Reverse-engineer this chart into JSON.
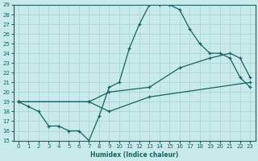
{
  "xlabel": "Humidex (Indice chaleur)",
  "bg_color": "#c8eaea",
  "line_color": "#1a6060",
  "grid_color": "#a8d0d0",
  "xlim": [
    -0.5,
    23.5
  ],
  "ylim": [
    15,
    29
  ],
  "xticks": [
    0,
    1,
    2,
    3,
    4,
    5,
    6,
    7,
    8,
    9,
    10,
    11,
    12,
    13,
    14,
    15,
    16,
    17,
    18,
    19,
    20,
    21,
    22,
    23
  ],
  "yticks": [
    15,
    16,
    17,
    18,
    19,
    20,
    21,
    22,
    23,
    24,
    25,
    26,
    27,
    28,
    29
  ],
  "line1_x": [
    0,
    1,
    2,
    3,
    4,
    5,
    6,
    7,
    8,
    9,
    10,
    11,
    12,
    13,
    14,
    15,
    16,
    17,
    18,
    19,
    20,
    21,
    22,
    23
  ],
  "line1_y": [
    19,
    18.5,
    18,
    16.5,
    16.5,
    16,
    16,
    15,
    17.5,
    20.5,
    21,
    24.5,
    27,
    29,
    29,
    29,
    28.5,
    26.5,
    25,
    24,
    24,
    23.5,
    21.5,
    20.5
  ],
  "line2_x": [
    0,
    7,
    9,
    13,
    16,
    19,
    21,
    22,
    23
  ],
  "line2_y": [
    19,
    19,
    20,
    20.5,
    22.5,
    23.5,
    24,
    23.5,
    21.5
  ],
  "line3_x": [
    0,
    7,
    9,
    13,
    23
  ],
  "line3_y": [
    19,
    19,
    18,
    19.5,
    21
  ]
}
